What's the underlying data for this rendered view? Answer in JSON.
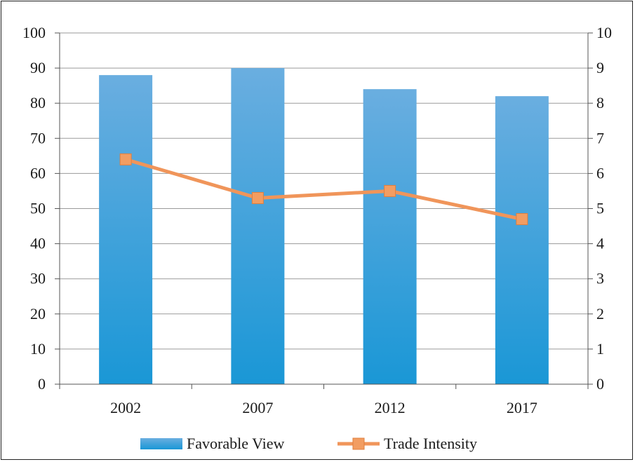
{
  "chart_data": {
    "type": "bar",
    "categories": [
      "2002",
      "2007",
      "2012",
      "2017"
    ],
    "series": [
      {
        "name": "Favorable View",
        "type": "bar",
        "axis": "left",
        "values": [
          88,
          90,
          84,
          82
        ]
      },
      {
        "name": "Trade Intensity",
        "type": "line",
        "axis": "right",
        "values": [
          6.4,
          5.3,
          5.5,
          4.7
        ]
      }
    ],
    "y_left": {
      "min": 0,
      "max": 100,
      "step": 10
    },
    "y_right": {
      "min": 0,
      "max": 10,
      "step": 1
    },
    "grid": true,
    "legend_position": "bottom",
    "colors": {
      "bar_top": "#6aaee0",
      "bar_bottom": "#1a97d6",
      "line": "#f0955a",
      "marker": "#f29d62",
      "grid": "#9a9a9a"
    }
  }
}
